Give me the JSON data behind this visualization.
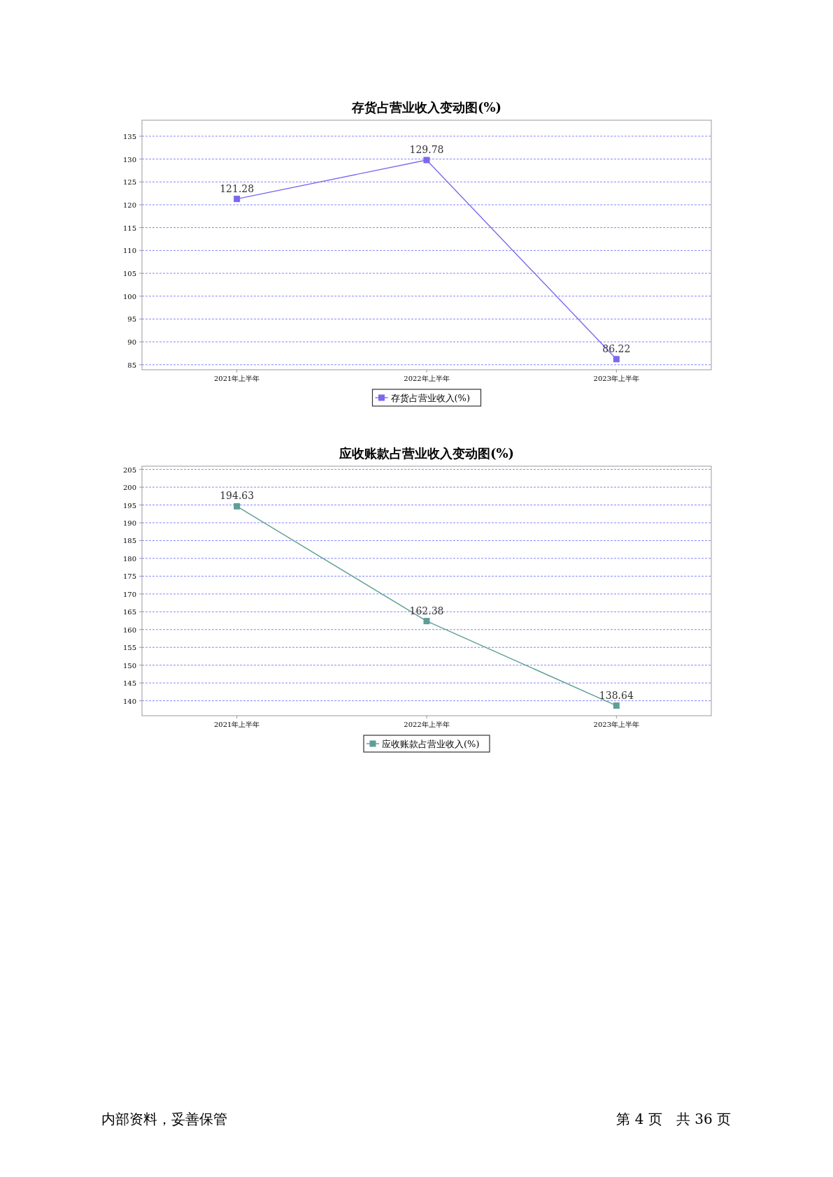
{
  "chart_data": [
    {
      "type": "line",
      "title": "存货占营业收入变动图(%)",
      "categories": [
        "2021年上半年",
        "2022年上半年",
        "2023年上半年"
      ],
      "series": [
        {
          "name": "存货占营业收入(%)",
          "color": "#7b68ee",
          "values": [
            121.28,
            129.78,
            86.22
          ]
        }
      ],
      "ylim": [
        83.9,
        138.5
      ],
      "yticks": [
        85,
        90,
        95,
        100,
        105,
        110,
        115,
        120,
        125,
        130,
        135
      ],
      "grid": "y",
      "legend": "bottom",
      "marker": "square",
      "data_labels": true
    },
    {
      "type": "line",
      "title": "应收账款占营业收入变动图(%)",
      "categories": [
        "2021年上半年",
        "2022年上半年",
        "2023年上半年"
      ],
      "series": [
        {
          "name": "应收账款占营业收入(%)",
          "color": "#5f9e96",
          "values": [
            194.63,
            162.38,
            138.64
          ]
        }
      ],
      "ylim": [
        135.8,
        205.9
      ],
      "yticks": [
        140,
        145,
        150,
        155,
        160,
        165,
        170,
        175,
        180,
        185,
        190,
        195,
        200,
        205
      ],
      "grid": "y",
      "legend": "bottom",
      "marker": "square",
      "data_labels": true,
      "annotations": [
        "内部资料，妥善保管",
        "第 4 页　共 36 页"
      ]
    }
  ]
}
